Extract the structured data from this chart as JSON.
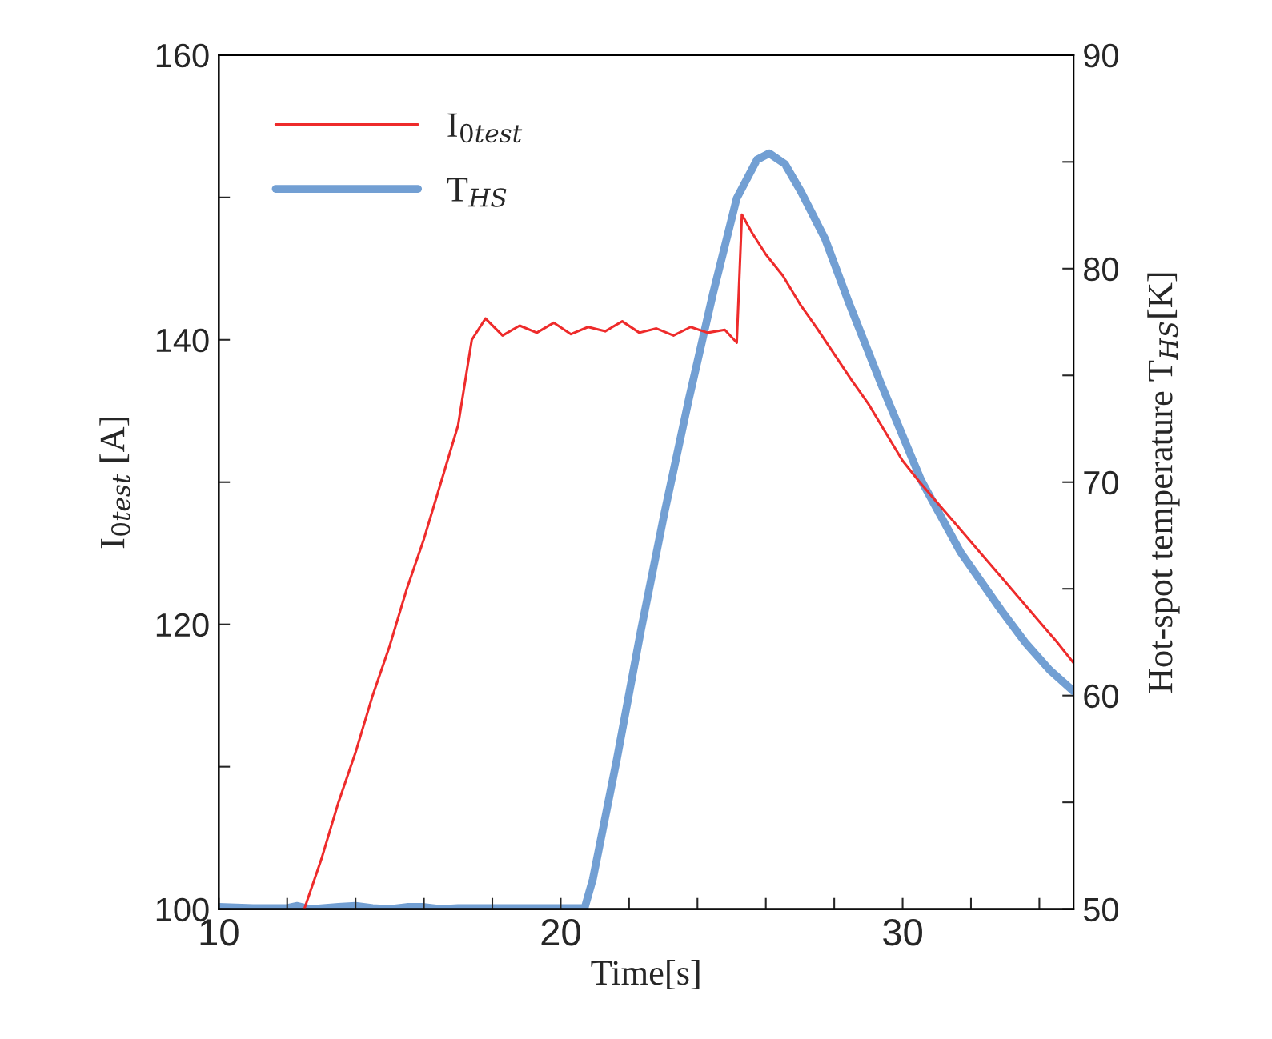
{
  "chart_data": {
    "type": "line",
    "xlabel": "Time[s]",
    "ylabel": "I$_{0test}$ [A]",
    "y2label": "Hot-spot temperature T$_{HS}$[K]",
    "xlim": [
      10,
      35
    ],
    "xticks": [
      10,
      {
        "value": 12,
        "label": null
      },
      {
        "value": 14,
        "label": null
      },
      {
        "value": 16,
        "label": null
      },
      {
        "value": 18,
        "label": null
      },
      20,
      {
        "value": 22,
        "label": null
      },
      {
        "value": 24,
        "label": null
      },
      {
        "value": 26,
        "label": null
      },
      {
        "value": 28,
        "label": null
      },
      30,
      {
        "value": 32,
        "label": null
      },
      {
        "value": 34,
        "label": null
      }
    ],
    "ylim": [
      100,
      160
    ],
    "yticks": [
      100,
      {
        "value": 110,
        "label": null
      },
      120,
      {
        "value": 130,
        "label": null
      },
      140,
      {
        "value": 150,
        "label": null
      },
      160
    ],
    "y2lim": [
      50,
      90
    ],
    "y2ticks": [
      50,
      {
        "value": 55,
        "label": null
      },
      60,
      {
        "value": 65,
        "label": null
      },
      70,
      {
        "value": 75,
        "label": null
      },
      80,
      {
        "value": 85,
        "label": null
      },
      90
    ],
    "grid": false,
    "legend": "top left",
    "line_style": "solid",
    "marker": "none",
    "series": [
      {
        "name": "I$_{0test}$",
        "color": "#ee2b2b",
        "axis": "y",
        "x": [
          12.5,
          13,
          13.5,
          14,
          14.5,
          15,
          15.5,
          16,
          16.5,
          17,
          17.4,
          17.8,
          18.3,
          18.8,
          19.3,
          19.8,
          20.3,
          20.8,
          21.3,
          21.8,
          22.3,
          22.8,
          23.3,
          23.8,
          24.3,
          24.8,
          25.15,
          25.3,
          25.6,
          26,
          26.5,
          27,
          27.5,
          28,
          28.5,
          29,
          29.5,
          30,
          30.5,
          31,
          31.5,
          32,
          32.5,
          33,
          33.5,
          34,
          34.5,
          35
        ],
        "values": [
          100,
          103.5,
          107.5,
          111,
          115,
          118.5,
          122.5,
          126,
          130,
          134,
          140,
          141.5,
          140.3,
          141,
          140.5,
          141.2,
          140.4,
          140.9,
          140.6,
          141.3,
          140.5,
          140.8,
          140.3,
          140.9,
          140.5,
          140.7,
          139.8,
          148.8,
          147.5,
          146,
          144.5,
          142.5,
          140.8,
          139,
          137.2,
          135.5,
          133.5,
          131.5,
          130,
          128.6,
          127.2,
          125.8,
          124.4,
          123,
          121.6,
          120.2,
          118.8,
          117.3
        ]
      },
      {
        "name": "T$_{HS}$",
        "color": "#729fd3",
        "axis": "y2",
        "x": [
          10,
          11,
          12,
          12.3,
          12.7,
          13.5,
          14,
          14.5,
          15,
          15.5,
          16,
          16.5,
          17,
          18,
          19,
          20,
          20.7,
          20.94,
          21.64,
          22.34,
          23.04,
          23.75,
          24.45,
          25.15,
          25.74,
          26.1,
          26.56,
          27.03,
          27.73,
          28.43,
          29.37,
          30.54,
          31.7,
          32.88,
          33.58,
          34.3,
          35
        ],
        "values": [
          50.1,
          50.05,
          50.05,
          50.15,
          50.0,
          50.1,
          50.15,
          50.05,
          50.0,
          50.1,
          50.1,
          50.0,
          50.05,
          50.05,
          50.05,
          50.05,
          50.05,
          51.4,
          57,
          63,
          68.6,
          73.9,
          78.8,
          83.3,
          85.1,
          85.4,
          84.9,
          83.6,
          81.4,
          78.4,
          74.6,
          70.1,
          66.7,
          64,
          62.5,
          61.2,
          60.2
        ]
      }
    ]
  }
}
